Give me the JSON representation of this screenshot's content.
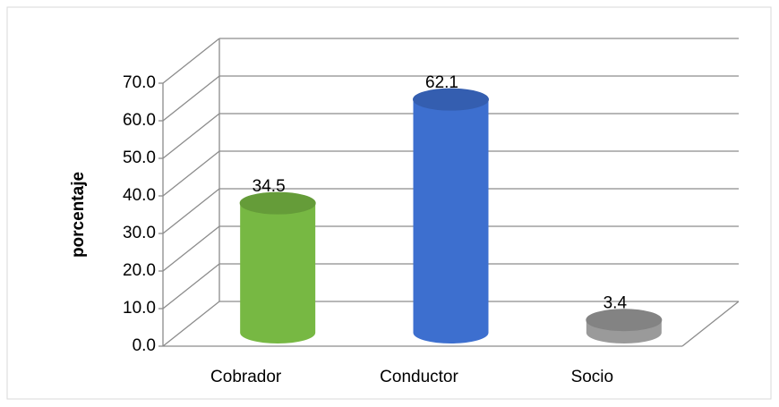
{
  "chart_data": {
    "type": "bar3d",
    "categories": [
      "Cobrador",
      "Conductor",
      "Socio"
    ],
    "values": [
      34.5,
      62.1,
      3.4
    ],
    "colors": [
      "#77b843",
      "#3d6fcf",
      "#9a9a9a"
    ],
    "ylabel": "porcentaje",
    "ylim": [
      0,
      70
    ],
    "yticks": [
      {
        "value": 0,
        "label": "0.0"
      },
      {
        "value": 10,
        "label": "10.0"
      },
      {
        "value": 20,
        "label": "20.0"
      },
      {
        "value": 30,
        "label": "30.0"
      },
      {
        "value": 40,
        "label": "40.0"
      },
      {
        "value": 50,
        "label": "50.0"
      },
      {
        "value": 60,
        "label": "60.0"
      },
      {
        "value": 70,
        "label": "70.0"
      }
    ],
    "grid": true
  }
}
